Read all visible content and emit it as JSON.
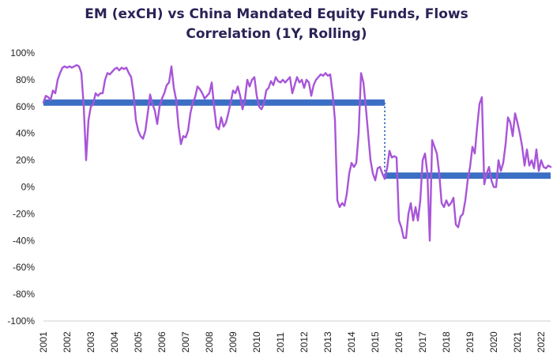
{
  "chart_data": {
    "type": "line",
    "title": [
      "EM (exCH) vs China Mandated Equity Funds, Flows",
      "Correlation (1Y, Rolling)"
    ],
    "xlabel": "",
    "ylabel": "",
    "xlim": [
      2001,
      2022.4
    ],
    "ylim": [
      -100,
      100
    ],
    "y_tick_labels": [
      "100%",
      "80%",
      "60%",
      "40%",
      "20%",
      "0%",
      "-20%",
      "-40%",
      "-60%",
      "-80%",
      "-100%"
    ],
    "y_tick_values": [
      100,
      80,
      60,
      40,
      20,
      0,
      -20,
      -40,
      -60,
      -80,
      -100
    ],
    "x_tick_labels": [
      "2001",
      "2002",
      "2003",
      "2004",
      "2005",
      "2006",
      "2007",
      "2008",
      "2009",
      "2010",
      "2011",
      "2012",
      "2013",
      "2014",
      "2015",
      "2016",
      "2017",
      "2018",
      "2019",
      "2020",
      "2021",
      "2022"
    ],
    "x_tick_values": [
      2001,
      2002,
      2003,
      2004,
      2005,
      2006,
      2007,
      2008,
      2009,
      2010,
      2011,
      2012,
      2013,
      2014,
      2015,
      2016,
      2017,
      2018,
      2019,
      2020,
      2021,
      2022
    ],
    "grid": false,
    "colors": {
      "series": "#a855d8",
      "average": "#3b6fc4",
      "title": "#2b2256"
    },
    "series": [
      {
        "values": [
          [
            2001.0,
            63
          ],
          [
            2001.1,
            68
          ],
          [
            2001.2,
            67
          ],
          [
            2001.3,
            65
          ],
          [
            2001.4,
            72
          ],
          [
            2001.5,
            70
          ],
          [
            2001.6,
            80
          ],
          [
            2001.7,
            85
          ],
          [
            2001.8,
            89
          ],
          [
            2001.9,
            90
          ],
          [
            2002.0,
            89
          ],
          [
            2002.1,
            90
          ],
          [
            2002.2,
            89
          ],
          [
            2002.3,
            90
          ],
          [
            2002.4,
            91
          ],
          [
            2002.5,
            90
          ],
          [
            2002.6,
            85
          ],
          [
            2002.7,
            60
          ],
          [
            2002.8,
            20
          ],
          [
            2002.9,
            50
          ],
          [
            2003.0,
            60
          ],
          [
            2003.1,
            62
          ],
          [
            2003.2,
            70
          ],
          [
            2003.3,
            68
          ],
          [
            2003.4,
            70
          ],
          [
            2003.5,
            70
          ],
          [
            2003.6,
            80
          ],
          [
            2003.7,
            85
          ],
          [
            2003.8,
            84
          ],
          [
            2003.9,
            86
          ],
          [
            2004.0,
            88
          ],
          [
            2004.1,
            89
          ],
          [
            2004.2,
            87
          ],
          [
            2004.3,
            89
          ],
          [
            2004.4,
            88
          ],
          [
            2004.5,
            89
          ],
          [
            2004.6,
            85
          ],
          [
            2004.7,
            82
          ],
          [
            2004.8,
            70
          ],
          [
            2004.9,
            50
          ],
          [
            2005.0,
            42
          ],
          [
            2005.1,
            38
          ],
          [
            2005.2,
            36
          ],
          [
            2005.3,
            42
          ],
          [
            2005.4,
            55
          ],
          [
            2005.5,
            69
          ],
          [
            2005.6,
            62
          ],
          [
            2005.7,
            57
          ],
          [
            2005.8,
            47
          ],
          [
            2005.9,
            60
          ],
          [
            2006.0,
            66
          ],
          [
            2006.1,
            70
          ],
          [
            2006.2,
            76
          ],
          [
            2006.3,
            78
          ],
          [
            2006.4,
            90
          ],
          [
            2006.5,
            74
          ],
          [
            2006.6,
            65
          ],
          [
            2006.7,
            45
          ],
          [
            2006.8,
            32
          ],
          [
            2006.9,
            38
          ],
          [
            2007.0,
            37
          ],
          [
            2007.1,
            42
          ],
          [
            2007.2,
            55
          ],
          [
            2007.3,
            63
          ],
          [
            2007.4,
            67
          ],
          [
            2007.5,
            75
          ],
          [
            2007.6,
            73
          ],
          [
            2007.7,
            70
          ],
          [
            2007.8,
            66
          ],
          [
            2007.9,
            68
          ],
          [
            2008.0,
            70
          ],
          [
            2008.1,
            78
          ],
          [
            2008.2,
            60
          ],
          [
            2008.3,
            45
          ],
          [
            2008.4,
            43
          ],
          [
            2008.5,
            52
          ],
          [
            2008.6,
            45
          ],
          [
            2008.7,
            48
          ],
          [
            2008.8,
            55
          ],
          [
            2008.9,
            63
          ],
          [
            2009.0,
            72
          ],
          [
            2009.1,
            70
          ],
          [
            2009.2,
            75
          ],
          [
            2009.3,
            68
          ],
          [
            2009.4,
            58
          ],
          [
            2009.5,
            65
          ],
          [
            2009.6,
            80
          ],
          [
            2009.7,
            75
          ],
          [
            2009.8,
            80
          ],
          [
            2009.9,
            82
          ],
          [
            2010.0,
            68
          ],
          [
            2010.1,
            60
          ],
          [
            2010.2,
            58
          ],
          [
            2010.3,
            62
          ],
          [
            2010.4,
            72
          ],
          [
            2010.5,
            74
          ],
          [
            2010.6,
            79
          ],
          [
            2010.7,
            76
          ],
          [
            2010.8,
            82
          ],
          [
            2010.9,
            79
          ],
          [
            2011.0,
            78
          ],
          [
            2011.1,
            80
          ],
          [
            2011.2,
            78
          ],
          [
            2011.3,
            80
          ],
          [
            2011.4,
            82
          ],
          [
            2011.5,
            70
          ],
          [
            2011.6,
            76
          ],
          [
            2011.7,
            82
          ],
          [
            2011.8,
            78
          ],
          [
            2011.9,
            80
          ],
          [
            2012.0,
            74
          ],
          [
            2012.1,
            80
          ],
          [
            2012.2,
            78
          ],
          [
            2012.3,
            68
          ],
          [
            2012.4,
            76
          ],
          [
            2012.5,
            80
          ],
          [
            2012.6,
            82
          ],
          [
            2012.7,
            84
          ],
          [
            2012.8,
            83
          ],
          [
            2012.9,
            85
          ],
          [
            2013.0,
            83
          ],
          [
            2013.1,
            84
          ],
          [
            2013.2,
            70
          ],
          [
            2013.3,
            50
          ],
          [
            2013.4,
            -10
          ],
          [
            2013.5,
            -15
          ],
          [
            2013.6,
            -12
          ],
          [
            2013.7,
            -14
          ],
          [
            2013.8,
            -5
          ],
          [
            2013.9,
            10
          ],
          [
            2014.0,
            18
          ],
          [
            2014.1,
            15
          ],
          [
            2014.2,
            18
          ],
          [
            2014.3,
            40
          ],
          [
            2014.4,
            85
          ],
          [
            2014.5,
            78
          ],
          [
            2014.6,
            60
          ],
          [
            2014.7,
            40
          ],
          [
            2014.8,
            20
          ],
          [
            2014.9,
            10
          ],
          [
            2015.0,
            5
          ],
          [
            2015.1,
            14
          ],
          [
            2015.2,
            15
          ],
          [
            2015.3,
            10
          ],
          [
            2015.4,
            6
          ],
          [
            2015.5,
            14
          ],
          [
            2015.6,
            27
          ],
          [
            2015.7,
            22
          ],
          [
            2015.8,
            23
          ],
          [
            2015.9,
            22
          ],
          [
            2016.0,
            -25
          ],
          [
            2016.1,
            -30
          ],
          [
            2016.2,
            -38
          ],
          [
            2016.3,
            -38
          ],
          [
            2016.4,
            -20
          ],
          [
            2016.5,
            -12
          ],
          [
            2016.6,
            -25
          ],
          [
            2016.7,
            -15
          ],
          [
            2016.8,
            -25
          ],
          [
            2016.9,
            -10
          ],
          [
            2017.0,
            20
          ],
          [
            2017.1,
            25
          ],
          [
            2017.2,
            10
          ],
          [
            2017.3,
            -40
          ],
          [
            2017.4,
            35
          ],
          [
            2017.5,
            30
          ],
          [
            2017.6,
            25
          ],
          [
            2017.7,
            10
          ],
          [
            2017.8,
            -12
          ],
          [
            2017.9,
            -15
          ],
          [
            2018.0,
            -10
          ],
          [
            2018.1,
            -14
          ],
          [
            2018.2,
            -12
          ],
          [
            2018.3,
            -8
          ],
          [
            2018.4,
            -28
          ],
          [
            2018.5,
            -30
          ],
          [
            2018.6,
            -22
          ],
          [
            2018.7,
            -20
          ],
          [
            2018.8,
            -10
          ],
          [
            2018.9,
            5
          ],
          [
            2019.0,
            15
          ],
          [
            2019.1,
            30
          ],
          [
            2019.2,
            25
          ],
          [
            2019.3,
            45
          ],
          [
            2019.4,
            62
          ],
          [
            2019.5,
            67
          ],
          [
            2019.6,
            2
          ],
          [
            2019.7,
            10
          ],
          [
            2019.8,
            15
          ],
          [
            2019.9,
            5
          ],
          [
            2020.0,
            0
          ],
          [
            2020.1,
            0
          ],
          [
            2020.2,
            20
          ],
          [
            2020.3,
            12
          ],
          [
            2020.4,
            18
          ],
          [
            2020.5,
            32
          ],
          [
            2020.6,
            52
          ],
          [
            2020.7,
            48
          ],
          [
            2020.8,
            38
          ],
          [
            2020.9,
            55
          ],
          [
            2021.0,
            48
          ],
          [
            2021.1,
            40
          ],
          [
            2021.2,
            30
          ],
          [
            2021.3,
            16
          ],
          [
            2021.4,
            28
          ],
          [
            2021.5,
            16
          ],
          [
            2021.6,
            20
          ],
          [
            2021.7,
            14
          ],
          [
            2021.8,
            28
          ],
          [
            2021.9,
            12
          ],
          [
            2022.0,
            20
          ],
          [
            2022.1,
            15
          ],
          [
            2022.2,
            14
          ],
          [
            2022.3,
            16
          ],
          [
            2022.4,
            15
          ]
        ]
      }
    ],
    "averages": [
      {
        "x_start": 2001.0,
        "x_end": 2015.4,
        "value": 63
      },
      {
        "x_start": 2015.4,
        "x_end": 2022.4,
        "value": 8.5
      }
    ]
  }
}
